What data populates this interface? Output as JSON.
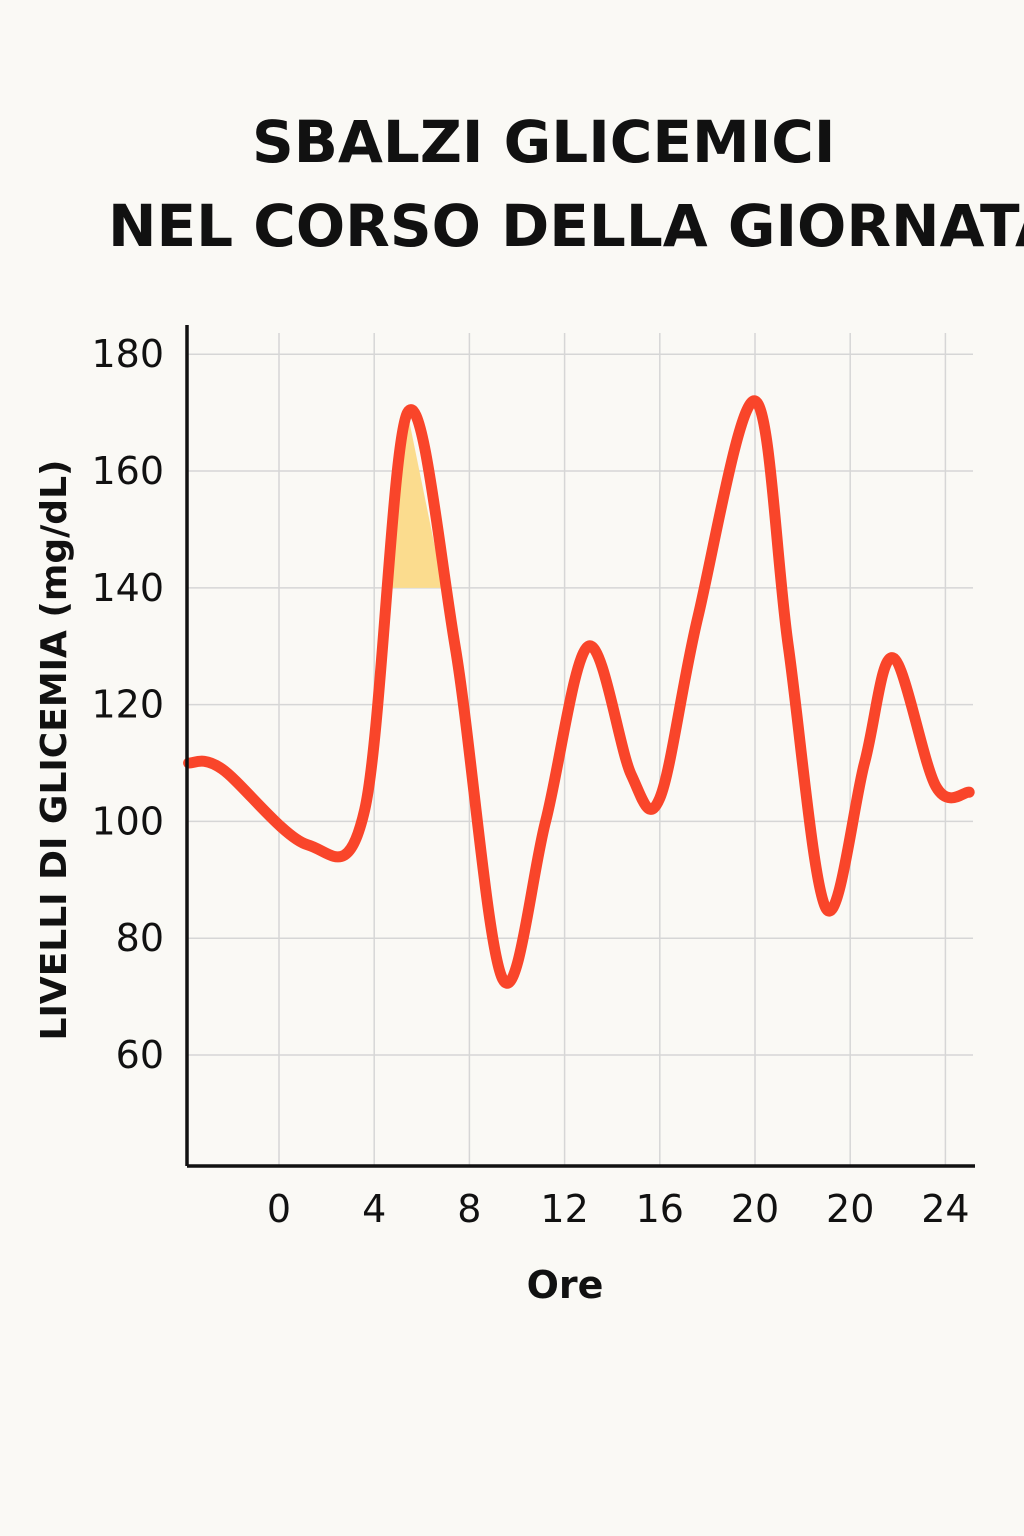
{
  "chart_data": {
    "type": "line",
    "title_lines": [
      "SBALZI GLICEMICI",
      "NEL CORSO DELLA GIORNATA"
    ],
    "xlabel": "Ore",
    "ylabel": "LIVELLI DI GLICEMIA (mg/dL)",
    "x_tick_labels": [
      "0",
      "4",
      "8",
      "12",
      "16",
      "20",
      "20",
      "24"
    ],
    "y_ticks": [
      60,
      80,
      100,
      120,
      140,
      160,
      180
    ],
    "ylim": [
      41,
      185
    ],
    "grid": true,
    "highlight_band": {
      "from_value": 140,
      "color": "#fbdc8e"
    },
    "series": [
      {
        "color": "#f9452a",
        "points": [
          {
            "pos": -0.95,
            "value": 110
          },
          {
            "pos": -0.6,
            "value": 109
          },
          {
            "pos": 0.3,
            "value": 96
          },
          {
            "pos": 0.9,
            "value": 102
          },
          {
            "pos": 1.35,
            "value": 170
          },
          {
            "pos": 1.85,
            "value": 130
          },
          {
            "pos": 2.35,
            "value": 73
          },
          {
            "pos": 2.8,
            "value": 100
          },
          {
            "pos": 3.25,
            "value": 130
          },
          {
            "pos": 3.7,
            "value": 108
          },
          {
            "pos": 4.0,
            "value": 104
          },
          {
            "pos": 4.4,
            "value": 135
          },
          {
            "pos": 5.0,
            "value": 172
          },
          {
            "pos": 5.35,
            "value": 130
          },
          {
            "pos": 5.75,
            "value": 85
          },
          {
            "pos": 6.15,
            "value": 110
          },
          {
            "pos": 6.45,
            "value": 128
          },
          {
            "pos": 6.9,
            "value": 106
          },
          {
            "pos": 7.25,
            "value": 105
          }
        ]
      }
    ]
  }
}
